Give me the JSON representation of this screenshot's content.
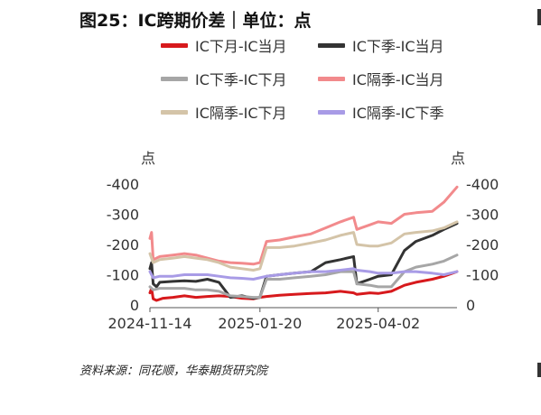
{
  "title": "图25：IC跨期价差｜单位：点",
  "source": "资料来源：同花顺，华泰期货研究院",
  "chart_data": {
    "type": "line",
    "ylabel_left": "点",
    "ylabel_right": "点",
    "ylim": [
      -400,
      0
    ],
    "yticks": [
      0,
      -100,
      -200,
      -300,
      -400
    ],
    "xlim": [
      "2024-11-14",
      "2025-05-20"
    ],
    "xticks": [
      "2024-11-14",
      "2025-01-20",
      "2025-04-02"
    ],
    "grid": false,
    "legend_position": "top",
    "series": [
      {
        "name": "IC下月-IC当月",
        "color": "#d7191c",
        "points": [
          [
            "2024-11-14",
            -40
          ],
          [
            "2024-11-15",
            -55
          ],
          [
            "2024-11-16",
            -20
          ],
          [
            "2024-11-18",
            -15
          ],
          [
            "2024-11-22",
            -22
          ],
          [
            "2024-11-28",
            -25
          ],
          [
            "2024-12-05",
            -30
          ],
          [
            "2024-12-12",
            -25
          ],
          [
            "2024-12-19",
            -28
          ],
          [
            "2024-12-26",
            -30
          ],
          [
            "2025-01-02",
            -28
          ],
          [
            "2025-01-09",
            -22
          ],
          [
            "2025-01-16",
            -20
          ],
          [
            "2025-01-20",
            -25
          ],
          [
            "2025-01-24",
            -28
          ],
          [
            "2025-02-01",
            -32
          ],
          [
            "2025-02-10",
            -35
          ],
          [
            "2025-02-20",
            -38
          ],
          [
            "2025-03-01",
            -40
          ],
          [
            "2025-03-10",
            -45
          ],
          [
            "2025-03-18",
            -40
          ],
          [
            "2025-03-20",
            -35
          ],
          [
            "2025-03-28",
            -40
          ],
          [
            "2025-04-02",
            -38
          ],
          [
            "2025-04-10",
            -45
          ],
          [
            "2025-04-18",
            -65
          ],
          [
            "2025-04-25",
            -75
          ],
          [
            "2025-05-05",
            -85
          ],
          [
            "2025-05-12",
            -95
          ],
          [
            "2025-05-20",
            -110
          ]
        ]
      },
      {
        "name": "IC下季-IC当月",
        "color": "#333333",
        "points": [
          [
            "2024-11-14",
            -120
          ],
          [
            "2024-11-15",
            -140
          ],
          [
            "2024-11-16",
            -70
          ],
          [
            "2024-11-18",
            -60
          ],
          [
            "2024-11-20",
            -75
          ],
          [
            "2024-11-28",
            -78
          ],
          [
            "2024-12-05",
            -80
          ],
          [
            "2024-12-12",
            -78
          ],
          [
            "2024-12-19",
            -85
          ],
          [
            "2024-12-26",
            -75
          ],
          [
            "2025-01-02",
            -25
          ],
          [
            "2025-01-09",
            -30
          ],
          [
            "2025-01-16",
            -22
          ],
          [
            "2025-01-20",
            -25
          ],
          [
            "2025-01-24",
            -95
          ],
          [
            "2025-02-01",
            -100
          ],
          [
            "2025-02-10",
            -105
          ],
          [
            "2025-02-20",
            -110
          ],
          [
            "2025-03-01",
            -140
          ],
          [
            "2025-03-10",
            -150
          ],
          [
            "2025-03-18",
            -160
          ],
          [
            "2025-03-20",
            -70
          ],
          [
            "2025-03-28",
            -85
          ],
          [
            "2025-04-02",
            -95
          ],
          [
            "2025-04-10",
            -100
          ],
          [
            "2025-04-18",
            -180
          ],
          [
            "2025-04-25",
            -210
          ],
          [
            "2025-05-05",
            -230
          ],
          [
            "2025-05-12",
            -250
          ],
          [
            "2025-05-20",
            -270
          ]
        ]
      },
      {
        "name": "IC下季-IC下月",
        "color": "#a6a6a6",
        "points": [
          [
            "2024-11-14",
            -60
          ],
          [
            "2024-11-16",
            -50
          ],
          [
            "2024-11-20",
            -55
          ],
          [
            "2024-11-28",
            -55
          ],
          [
            "2024-12-05",
            -55
          ],
          [
            "2024-12-12",
            -50
          ],
          [
            "2024-12-19",
            -50
          ],
          [
            "2024-12-26",
            -45
          ],
          [
            "2025-01-02",
            -30
          ],
          [
            "2025-01-09",
            -28
          ],
          [
            "2025-01-16",
            -25
          ],
          [
            "2025-01-20",
            -25
          ],
          [
            "2025-01-24",
            -85
          ],
          [
            "2025-02-01",
            -85
          ],
          [
            "2025-02-10",
            -90
          ],
          [
            "2025-02-20",
            -95
          ],
          [
            "2025-03-01",
            -100
          ],
          [
            "2025-03-10",
            -110
          ],
          [
            "2025-03-18",
            -110
          ],
          [
            "2025-03-20",
            -70
          ],
          [
            "2025-03-28",
            -65
          ],
          [
            "2025-04-02",
            -60
          ],
          [
            "2025-04-10",
            -60
          ],
          [
            "2025-04-18",
            -110
          ],
          [
            "2025-04-25",
            -125
          ],
          [
            "2025-05-05",
            -135
          ],
          [
            "2025-05-12",
            -145
          ],
          [
            "2025-05-20",
            -165
          ]
        ]
      },
      {
        "name": "IC隔季-IC当月",
        "color": "#f28a8c",
        "points": [
          [
            "2024-11-14",
            -220
          ],
          [
            "2024-11-15",
            -240
          ],
          [
            "2024-11-16",
            -150
          ],
          [
            "2024-11-20",
            -160
          ],
          [
            "2024-11-28",
            -165
          ],
          [
            "2024-12-05",
            -170
          ],
          [
            "2024-12-12",
            -165
          ],
          [
            "2024-12-19",
            -155
          ],
          [
            "2024-12-26",
            -145
          ],
          [
            "2025-01-02",
            -140
          ],
          [
            "2025-01-09",
            -138
          ],
          [
            "2025-01-16",
            -135
          ],
          [
            "2025-01-20",
            -140
          ],
          [
            "2025-01-24",
            -210
          ],
          [
            "2025-02-01",
            -215
          ],
          [
            "2025-02-10",
            -225
          ],
          [
            "2025-02-20",
            -235
          ],
          [
            "2025-03-01",
            -255
          ],
          [
            "2025-03-10",
            -275
          ],
          [
            "2025-03-18",
            -290
          ],
          [
            "2025-03-20",
            -250
          ],
          [
            "2025-03-28",
            -265
          ],
          [
            "2025-04-02",
            -275
          ],
          [
            "2025-04-10",
            -270
          ],
          [
            "2025-04-18",
            -300
          ],
          [
            "2025-04-25",
            -305
          ],
          [
            "2025-05-05",
            -310
          ],
          [
            "2025-05-12",
            -340
          ],
          [
            "2025-05-20",
            -390
          ]
        ]
      },
      {
        "name": "IC隔季-IC下月",
        "color": "#d4c4a8",
        "points": [
          [
            "2024-11-14",
            -170
          ],
          [
            "2024-11-16",
            -140
          ],
          [
            "2024-11-20",
            -150
          ],
          [
            "2024-11-28",
            -155
          ],
          [
            "2024-12-05",
            -160
          ],
          [
            "2024-12-12",
            -155
          ],
          [
            "2024-12-19",
            -150
          ],
          [
            "2024-12-26",
            -140
          ],
          [
            "2025-01-02",
            -125
          ],
          [
            "2025-01-09",
            -120
          ],
          [
            "2025-01-16",
            -115
          ],
          [
            "2025-01-20",
            -120
          ],
          [
            "2025-01-24",
            -190
          ],
          [
            "2025-02-01",
            -190
          ],
          [
            "2025-02-10",
            -195
          ],
          [
            "2025-02-20",
            -205
          ],
          [
            "2025-03-01",
            -215
          ],
          [
            "2025-03-10",
            -230
          ],
          [
            "2025-03-18",
            -240
          ],
          [
            "2025-03-20",
            -200
          ],
          [
            "2025-03-28",
            -195
          ],
          [
            "2025-04-02",
            -195
          ],
          [
            "2025-04-10",
            -205
          ],
          [
            "2025-04-18",
            -235
          ],
          [
            "2025-04-25",
            -240
          ],
          [
            "2025-05-05",
            -245
          ],
          [
            "2025-05-12",
            -255
          ],
          [
            "2025-05-20",
            -275
          ]
        ]
      },
      {
        "name": "IC隔季-IC下季",
        "color": "#a89be6",
        "points": [
          [
            "2024-11-14",
            -110
          ],
          [
            "2024-11-16",
            -90
          ],
          [
            "2024-11-20",
            -95
          ],
          [
            "2024-11-28",
            -95
          ],
          [
            "2024-12-05",
            -100
          ],
          [
            "2024-12-12",
            -100
          ],
          [
            "2024-12-19",
            -100
          ],
          [
            "2024-12-26",
            -95
          ],
          [
            "2025-01-02",
            -90
          ],
          [
            "2025-01-09",
            -88
          ],
          [
            "2025-01-16",
            -85
          ],
          [
            "2025-01-20",
            -90
          ],
          [
            "2025-01-24",
            -95
          ],
          [
            "2025-02-01",
            -100
          ],
          [
            "2025-02-10",
            -105
          ],
          [
            "2025-02-20",
            -110
          ],
          [
            "2025-03-01",
            -110
          ],
          [
            "2025-03-10",
            -115
          ],
          [
            "2025-03-18",
            -120
          ],
          [
            "2025-03-20",
            -115
          ],
          [
            "2025-03-28",
            -110
          ],
          [
            "2025-04-02",
            -105
          ],
          [
            "2025-04-10",
            -105
          ],
          [
            "2025-04-18",
            -110
          ],
          [
            "2025-04-25",
            -110
          ],
          [
            "2025-05-05",
            -105
          ],
          [
            "2025-05-12",
            -100
          ],
          [
            "2025-05-20",
            -110
          ]
        ]
      }
    ]
  }
}
